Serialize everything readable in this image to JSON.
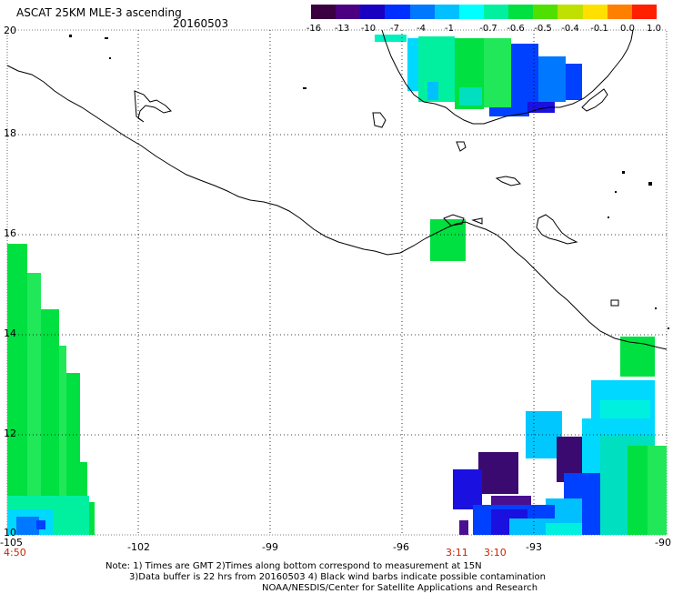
{
  "header": {
    "title": "ASCAT 25KM MLE-3 ascending",
    "date": "20160503"
  },
  "colorbar": {
    "labels": [
      "-16",
      "-13",
      "-10",
      "-7",
      "-4",
      "-1",
      "-0.7",
      "-0.6",
      "-0.5",
      "-0.4",
      "-0.1",
      "0.0",
      "1.0"
    ],
    "colors": [
      "#3a0040",
      "#4b0082",
      "#1a00c0",
      "#0030ff",
      "#0078ff",
      "#00c0ff",
      "#00ffff",
      "#00f0a0",
      "#00e040",
      "#50e000",
      "#c0e000",
      "#ffe000",
      "#ff8000",
      "#ff2000"
    ]
  },
  "axes": {
    "lat_labels": [
      "20",
      "18",
      "16",
      "14",
      "12",
      "10"
    ],
    "lon_labels": [
      "-105",
      "-102",
      "-99",
      "-96",
      "-93",
      "-90"
    ],
    "time_labels": [
      "4:50",
      "3:11",
      "3:10"
    ]
  },
  "footer": {
    "line1": "Note: 1) Times are GMT 2)Times along bottom correspond to measurement at 15N",
    "line2": "3)Data buffer is 22 hrs from 20160503 4) Black wind barbs indicate possible contamination",
    "line3": "NOAA/NESDIS/Center for Satellite Applications and Research"
  }
}
